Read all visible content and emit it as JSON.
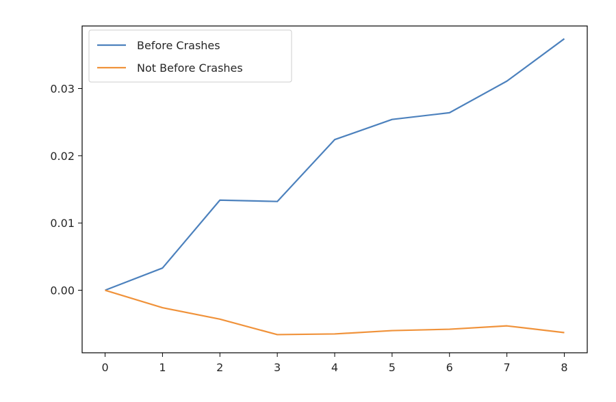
{
  "chart_data": {
    "type": "line",
    "title": "",
    "xlabel": "",
    "ylabel": "",
    "x": [
      0,
      1,
      2,
      3,
      4,
      5,
      6,
      7,
      8
    ],
    "xlim": [
      -0.4,
      8.4
    ],
    "ylim": [
      -0.0093,
      0.0393
    ],
    "xticks": [
      0,
      1,
      2,
      3,
      4,
      5,
      6,
      7,
      8
    ],
    "yticks": [
      0.0,
      0.01,
      0.02,
      0.03
    ],
    "ytick_labels": [
      "0.00",
      "0.01",
      "0.02",
      "0.03"
    ],
    "grid": false,
    "legend_position": "top-left",
    "series": [
      {
        "name": "Before Crashes",
        "color": "#4c81bd",
        "values": [
          0.0,
          0.0033,
          0.0134,
          0.0132,
          0.0224,
          0.0254,
          0.0264,
          0.0311,
          0.0374
        ]
      },
      {
        "name": "Not Before Crashes",
        "color": "#f0923a",
        "values": [
          0.0,
          -0.0026,
          -0.0043,
          -0.0066,
          -0.0065,
          -0.006,
          -0.0058,
          -0.0053,
          -0.0063
        ]
      }
    ]
  }
}
